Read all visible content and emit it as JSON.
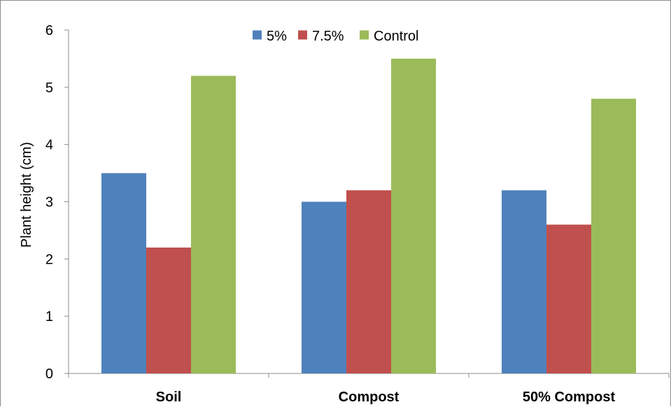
{
  "chart_data": {
    "type": "bar",
    "title": "",
    "xlabel": "",
    "ylabel": "Plant height (cm)",
    "ylim": [
      0,
      6
    ],
    "yticks": [
      0,
      1,
      2,
      3,
      4,
      5,
      6
    ],
    "categories": [
      "Soil",
      "Compost",
      "50% Compost"
    ],
    "series": [
      {
        "name": "5%",
        "color": "#4f81bd",
        "values": [
          3.5,
          3.0,
          3.2
        ]
      },
      {
        "name": "7.5%",
        "color": "#c0504d",
        "values": [
          2.2,
          3.2,
          2.6
        ]
      },
      {
        "name": "Control",
        "color": "#9bbb59",
        "values": [
          5.2,
          5.5,
          4.8
        ]
      }
    ],
    "grid": false,
    "legend_position": "top-center"
  }
}
